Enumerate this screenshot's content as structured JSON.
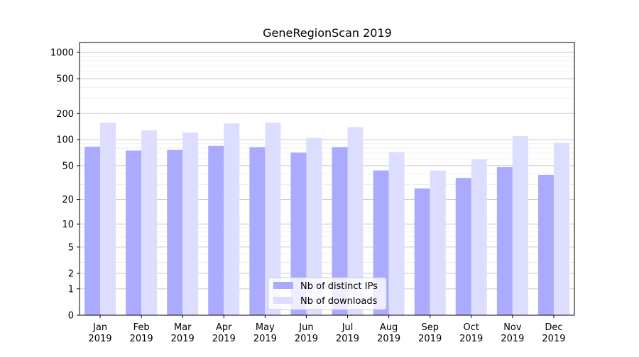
{
  "chart_data": {
    "type": "bar",
    "title": "GeneRegionScan 2019",
    "xlabel": "",
    "ylabel": "",
    "yscale": "symlog",
    "ylim": [
      0,
      1300
    ],
    "grid": true,
    "legend_position": "bottom-center",
    "categories": [
      "Jan\n2019",
      "Feb\n2019",
      "Mar\n2019",
      "Apr\n2019",
      "May\n2019",
      "Jun\n2019",
      "Jul\n2019",
      "Aug\n2019",
      "Sep\n2019",
      "Oct\n2019",
      "Nov\n2019",
      "Dec\n2019"
    ],
    "yticks": [
      0,
      1,
      2,
      5,
      10,
      20,
      50,
      100,
      200,
      500,
      1000
    ],
    "ytick_labels": [
      "0",
      "1",
      "2",
      "5",
      "10",
      "20",
      "50",
      "100",
      "200",
      "500",
      "1000"
    ],
    "series": [
      {
        "name": "Nb of distinct IPs",
        "color": "#aaaaff",
        "values": [
          83,
          75,
          76,
          85,
          82,
          71,
          82,
          44,
          27,
          36,
          48,
          39
        ]
      },
      {
        "name": "Nb of downloads",
        "color": "#ddddff",
        "values": [
          157,
          128,
          121,
          154,
          157,
          105,
          140,
          72,
          44,
          59,
          110,
          92
        ]
      }
    ]
  }
}
